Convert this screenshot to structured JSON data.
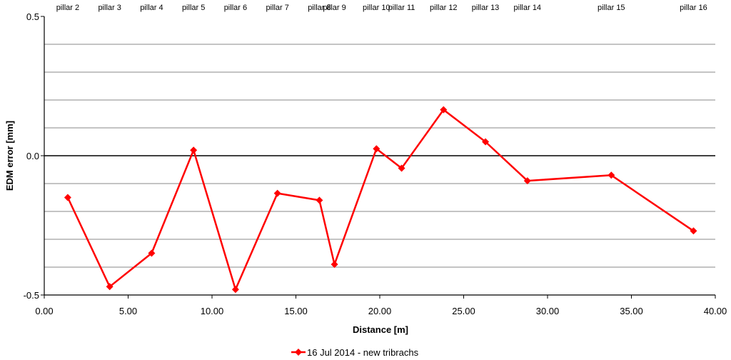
{
  "chart_data": {
    "type": "line",
    "xlabel": "Distance [m]",
    "ylabel": "EDM error [mm]",
    "xlim": [
      0,
      40
    ],
    "ylim": [
      -0.5,
      0.5
    ],
    "x_ticks": [
      "0.00",
      "5.00",
      "10.00",
      "15.00",
      "20.00",
      "25.00",
      "30.00",
      "35.00",
      "40.00"
    ],
    "y_ticks": [
      "-0.5",
      "0.0",
      "0.5"
    ],
    "y_gridlines": [
      -0.4,
      -0.3,
      -0.2,
      -0.1,
      0.0,
      0.1,
      0.2,
      0.3,
      0.4
    ],
    "grid": true,
    "legend_position": "bottom",
    "top_labels": [
      {
        "label": "pillar 2",
        "x": 1.4
      },
      {
        "label": "pillar 3",
        "x": 3.9
      },
      {
        "label": "pillar 4",
        "x": 6.4
      },
      {
        "label": "pillar 5",
        "x": 8.9
      },
      {
        "label": "pillar 6",
        "x": 11.4
      },
      {
        "label": "pillar 7",
        "x": 13.9
      },
      {
        "label": "pillar 8",
        "x": 16.4
      },
      {
        "label": "pillar 9",
        "x": 17.3
      },
      {
        "label": "pillar 10",
        "x": 19.8
      },
      {
        "label": "pillar 11",
        "x": 21.3
      },
      {
        "label": "pillar 12",
        "x": 23.8
      },
      {
        "label": "pillar 13",
        "x": 26.3
      },
      {
        "label": "pillar 14",
        "x": 28.8
      },
      {
        "label": "pillar 15",
        "x": 33.8
      },
      {
        "label": "pillar 16",
        "x": 38.7
      }
    ],
    "series": [
      {
        "name": "16 Jul 2014 - new tribrachs",
        "color": "#ff0000",
        "marker": "diamond",
        "x": [
          1.4,
          3.9,
          6.4,
          8.9,
          11.4,
          13.9,
          16.4,
          17.3,
          19.8,
          21.3,
          23.8,
          26.3,
          28.8,
          33.8,
          38.7
        ],
        "y": [
          -0.15,
          -0.47,
          -0.35,
          0.02,
          -0.48,
          -0.135,
          -0.16,
          -0.39,
          0.025,
          -0.045,
          0.165,
          0.05,
          -0.09,
          -0.07,
          -0.27
        ]
      }
    ]
  }
}
